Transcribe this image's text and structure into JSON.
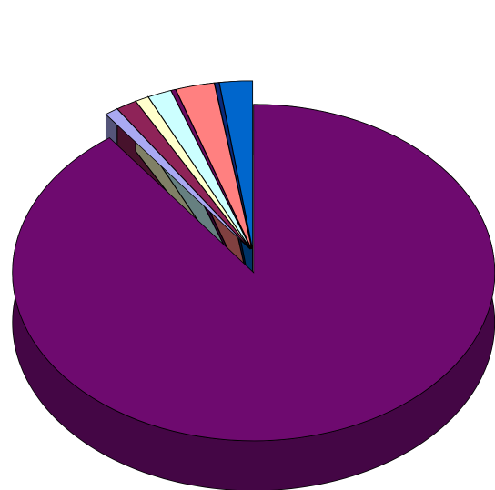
{
  "chart_data": {
    "type": "pie",
    "style": "3d-exploded",
    "title": "",
    "legend": "none",
    "slices": [
      {
        "value": 89.8,
        "color": "#6E0A6F"
      },
      {
        "value": 0.9,
        "color": "#A9A9F2"
      },
      {
        "value": 1.4,
        "color": "#8E2358"
      },
      {
        "value": 0.9,
        "color": "#FFFFCC"
      },
      {
        "value": 1.6,
        "color": "#CCFFFF"
      },
      {
        "value": 0.3,
        "color": "#6A0A60"
      },
      {
        "value": 2.6,
        "color": "#FF8080"
      },
      {
        "value": 0.3,
        "color": "#0A2A7A"
      },
      {
        "value": 2.2,
        "color": "#0066CC"
      }
    ]
  }
}
